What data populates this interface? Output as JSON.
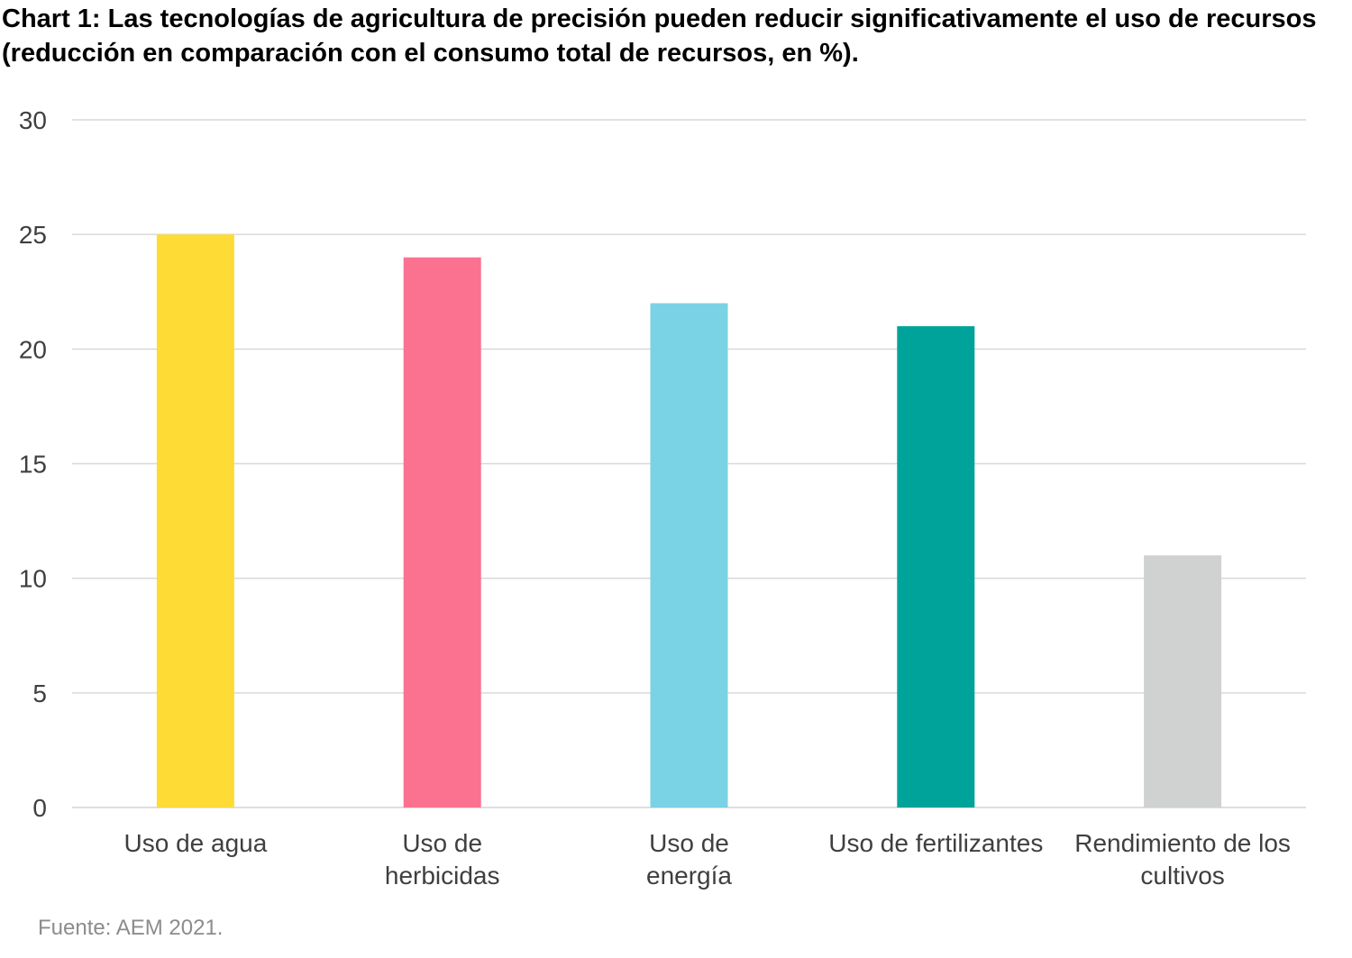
{
  "chart_data": {
    "type": "bar",
    "title": "Chart 1: Las tecnologías de agricultura de precisión pueden reducir significativamente el uso de recursos (reducción en comparación con el consumo total de recursos, en %).",
    "categories": [
      [
        "Uso de agua"
      ],
      [
        "Uso de",
        "herbicidas"
      ],
      [
        "Uso de",
        "energía"
      ],
      [
        "Uso de fertilizantes"
      ],
      [
        "Rendimiento de los",
        "cultivos"
      ]
    ],
    "values": [
      25,
      24,
      22,
      21,
      11
    ],
    "colors": [
      "#FEDB35",
      "#FB7290",
      "#7AD2E5",
      "#00A39A",
      "#D0D2D1"
    ],
    "ylim": [
      0,
      30
    ],
    "yticks": [
      0,
      5,
      10,
      15,
      20,
      25,
      30
    ],
    "grid": true,
    "grid_color": "#d9d9d9",
    "xlabel": "",
    "ylabel": "",
    "source": "Fuente: AEM 2021."
  }
}
